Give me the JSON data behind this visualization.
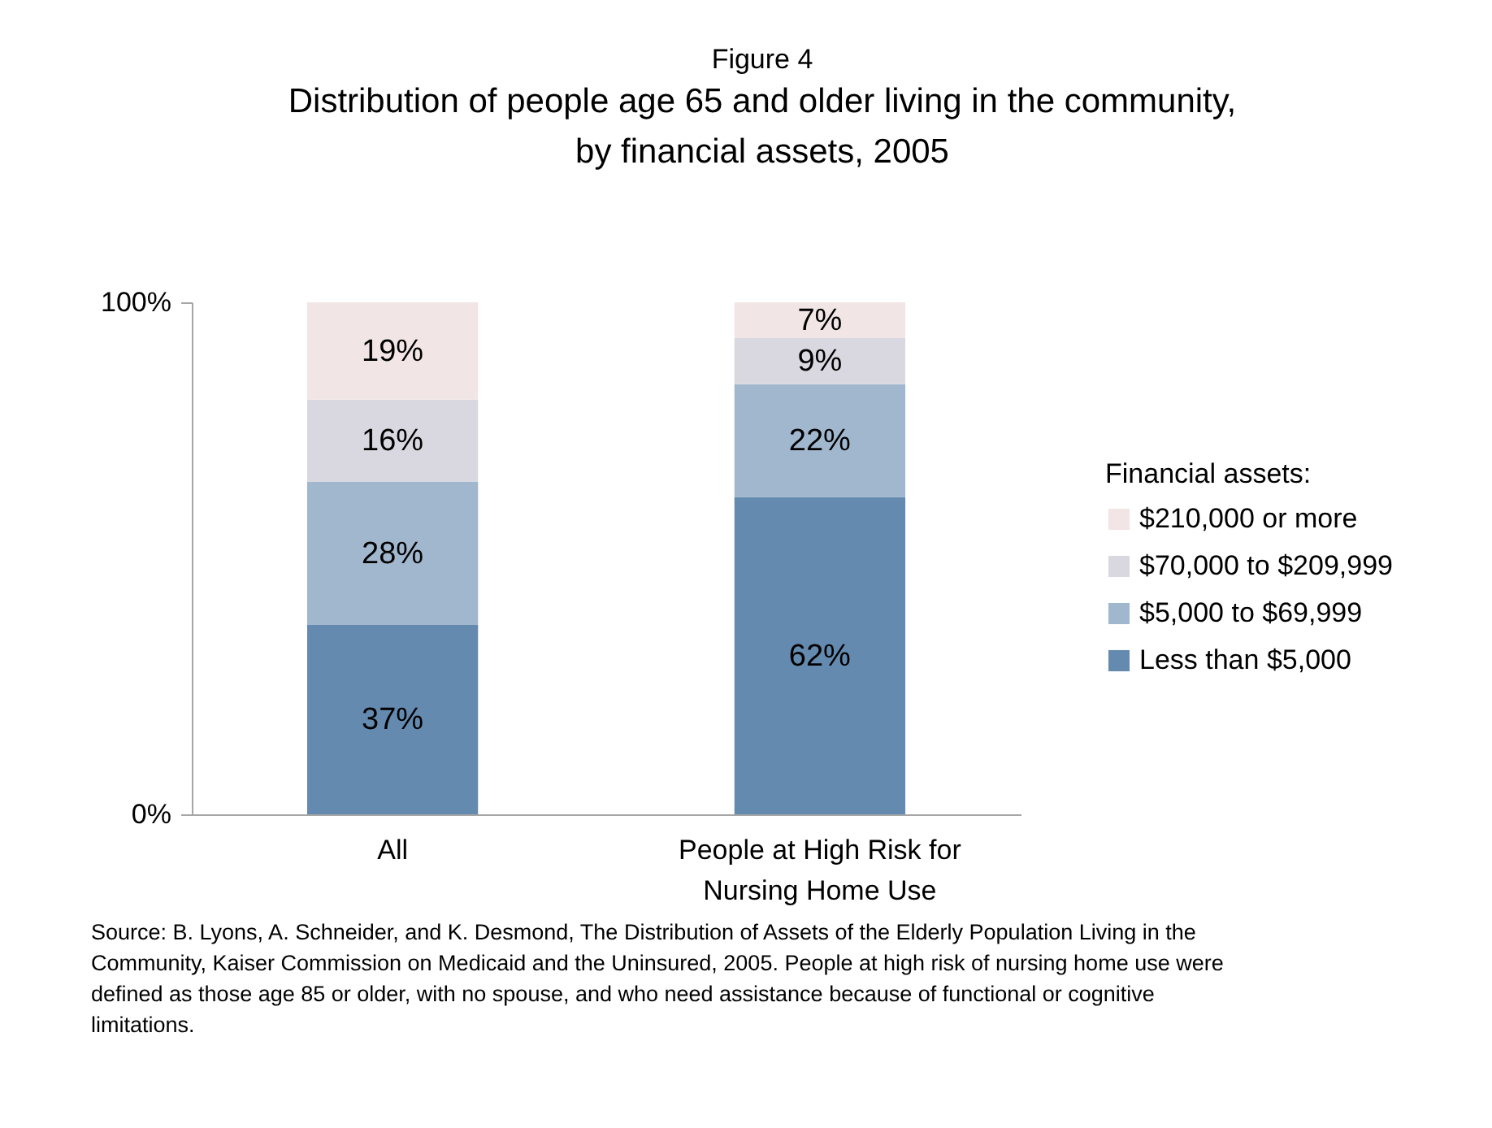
{
  "chart_data": {
    "type": "bar",
    "title": "Figure 4",
    "subtitle": "Distribution of people age 65 and older living in the community, by financial assets, 2005",
    "categories": [
      "All",
      "People at High Risk for Nursing Home Use"
    ],
    "stacked": true,
    "series": [
      {
        "name": "Less than $5,000",
        "color": "#648aaf",
        "values": [
          37,
          62
        ],
        "value_labels": [
          "37%",
          "62%"
        ]
      },
      {
        "name": "$5,000 to $69,999",
        "color": "#a1b7ce",
        "values": [
          28,
          22
        ],
        "value_labels": [
          "28%",
          "22%"
        ]
      },
      {
        "name": "$70,000 to $209,999",
        "color": "#d9d8e0",
        "values": [
          16,
          9
        ],
        "value_labels": [
          "16%",
          "9%"
        ]
      },
      {
        "name": "$210,000 or more",
        "color": "#f2e5e5",
        "values": [
          19,
          7
        ],
        "value_labels": [
          "19%",
          "7%"
        ]
      }
    ],
    "ylim": [
      0,
      100
    ],
    "yticks": [
      {
        "value": 0,
        "label": "0%"
      },
      {
        "value": 100,
        "label": "100%"
      }
    ],
    "legend_title": "Financial assets:",
    "legend": "right",
    "grid": false,
    "annotations": [
      "Source: B. Lyons, A. Schneider, and K. Desmond, The Distribution of Assets of the Elderly Population Living in the Community, Kaiser Commission on Medicaid and the Uninsured, 2005. People at high risk of nursing home use were defined as those age 85 or older, with no spouse, and who need assistance because of functional or cognitive limitations."
    ]
  }
}
